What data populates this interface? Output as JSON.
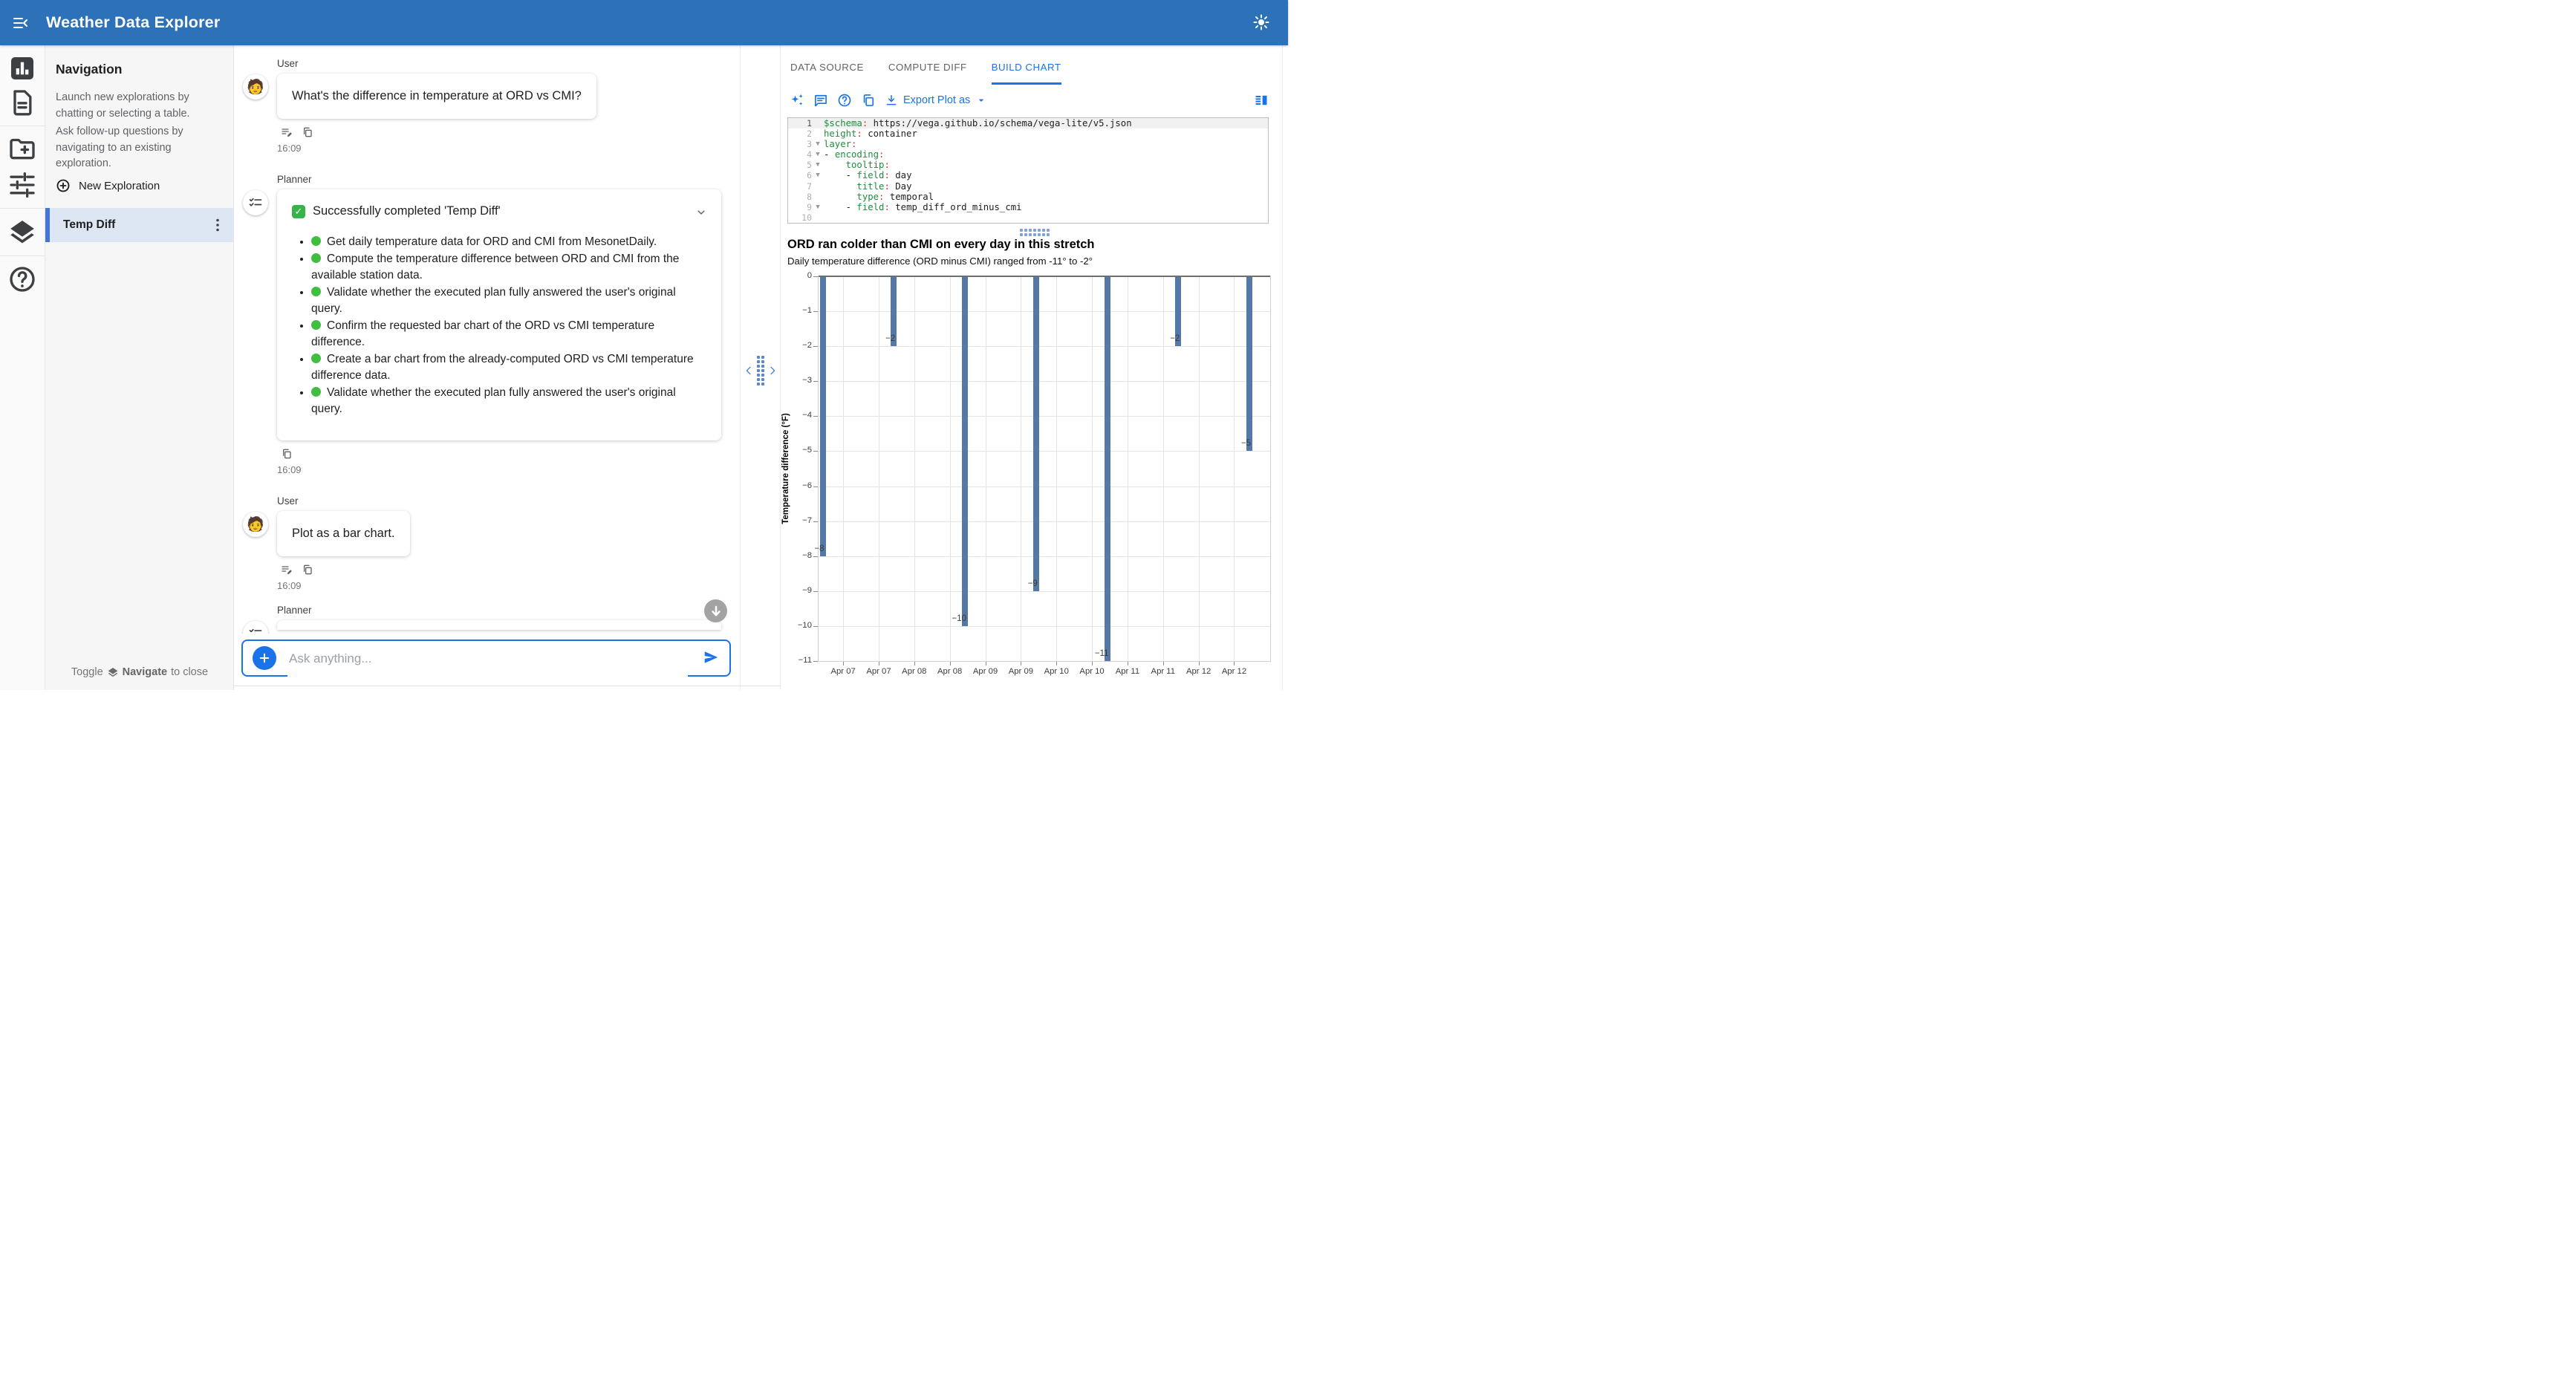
{
  "app": {
    "title": "Weather Data Explorer"
  },
  "colors": {
    "header": "#2d71b8",
    "accent": "#1a73e8",
    "bar": "#5579a6",
    "selected_row_bg": "#dde6f3",
    "selected_row_accent": "#4377d6"
  },
  "icon_rail": {
    "items": [
      "analytics-icon",
      "document-icon",
      "new-folder-icon",
      "tune-icon",
      "layers-icon",
      "help-icon"
    ]
  },
  "navigation": {
    "title": "Navigation",
    "description": [
      "Launch new explorations by chatting or selecting a table.",
      "Ask follow-up questions by navigating to an existing exploration."
    ],
    "new_exploration": {
      "icon": "circle-plus-icon",
      "label": "New Exploration"
    },
    "explorations": [
      {
        "label": "Temp Diff",
        "selected": true,
        "menu_icon": "kebab-menu-icon"
      }
    ],
    "footer": {
      "prefix": "Toggle",
      "icon": "layers-icon",
      "bold": "Navigate",
      "suffix": "to close"
    }
  },
  "chat": {
    "messages": [
      {
        "type": "user",
        "role_label": "User",
        "avatar": "person-emoji",
        "text": "What's the difference in temperature at ORD vs CMI?",
        "actions": [
          "edit-icon",
          "copy-icon"
        ],
        "time": "16:09"
      },
      {
        "type": "planner",
        "role_label": "Planner",
        "avatar": "checklist-icon",
        "status_title": "Successfully completed 'Temp Diff'",
        "steps": [
          "Get daily temperature data for ORD and CMI from MesonetDaily.",
          "Compute the temperature difference between ORD and CMI from the available station data.",
          "Validate whether the executed plan fully answered the user's original query.",
          "Confirm the requested bar chart of the ORD vs CMI temperature difference.",
          "Create a bar chart from the already-computed ORD vs CMI temperature difference data.",
          "Validate whether the executed plan fully answered the user's original query."
        ],
        "actions": [
          "copy-icon"
        ],
        "time": "16:09"
      },
      {
        "type": "user",
        "role_label": "User",
        "avatar": "person-emoji",
        "text": "Plot as a bar chart.",
        "actions": [
          "edit-icon",
          "copy-icon"
        ],
        "time": "16:09"
      },
      {
        "type": "planner-partial",
        "role_label": "Planner",
        "avatar": "checklist-icon"
      }
    ],
    "input": {
      "placeholder": "Ask anything...",
      "attach_icon": "plus-icon",
      "send_icon": "send-icon"
    },
    "scroll_to_bottom_icon": "arrow-down-icon"
  },
  "workspace": {
    "tabs": [
      {
        "label": "DATA SOURCE",
        "active": false
      },
      {
        "label": "COMPUTE DIFF",
        "active": false
      },
      {
        "label": "BUILD CHART",
        "active": true
      }
    ],
    "toolbar": {
      "icons": [
        "auto-awesome-icon",
        "comment-icon",
        "help-icon",
        "copy-icon"
      ],
      "export": {
        "icon": "download-icon",
        "label": "Export Plot as",
        "caret": "caret-down-icon"
      },
      "right_icon": "vertical-split-icon"
    },
    "editor": {
      "lines": [
        {
          "n": "1",
          "active": true,
          "fold": false,
          "tokens": [
            [
              "k",
              "$schema"
            ],
            [
              "p",
              ":"
            ],
            [
              "v",
              " https://vega.github.io/schema/vega-lite/v5.json"
            ]
          ]
        },
        {
          "n": "2",
          "fold": false,
          "tokens": [
            [
              "k",
              "height"
            ],
            [
              "p",
              ":"
            ],
            [
              "v",
              " container"
            ]
          ]
        },
        {
          "n": "3",
          "fold": true,
          "tokens": [
            [
              "k",
              "layer"
            ],
            [
              "p",
              ":"
            ]
          ]
        },
        {
          "n": "4",
          "fold": true,
          "tokens": [
            [
              "v",
              "- "
            ],
            [
              "k",
              "encoding"
            ],
            [
              "p",
              ":"
            ]
          ]
        },
        {
          "n": "5",
          "fold": true,
          "tokens": [
            [
              "v",
              "    "
            ],
            [
              "k",
              "tooltip"
            ],
            [
              "p",
              ":"
            ]
          ]
        },
        {
          "n": "6",
          "fold": true,
          "tokens": [
            [
              "v",
              "    - "
            ],
            [
              "k",
              "field"
            ],
            [
              "p",
              ":"
            ],
            [
              "v",
              " day"
            ]
          ]
        },
        {
          "n": "7",
          "fold": false,
          "tokens": [
            [
              "v",
              "      "
            ],
            [
              "k",
              "title"
            ],
            [
              "p",
              ":"
            ],
            [
              "v",
              " Day"
            ]
          ]
        },
        {
          "n": "8",
          "fold": false,
          "tokens": [
            [
              "v",
              "      "
            ],
            [
              "k",
              "type"
            ],
            [
              "p",
              ":"
            ],
            [
              "v",
              " temporal"
            ]
          ]
        },
        {
          "n": "9",
          "fold": true,
          "tokens": [
            [
              "v",
              "    - "
            ],
            [
              "k",
              "field"
            ],
            [
              "p",
              ":"
            ],
            [
              "v",
              " temp_diff_ord_minus_cmi"
            ]
          ]
        },
        {
          "n": "10",
          "fold": false,
          "tokens": []
        }
      ]
    }
  },
  "chart_data": {
    "type": "bar",
    "title": "ORD ran colder than CMI on every day in this stretch",
    "subtitle": "Daily temperature difference (ORD minus CMI) ranged from -11° to -2°",
    "ylabel": "Temperature difference (°F)",
    "values": [
      -8,
      -2,
      -10,
      -9,
      -11,
      -2,
      -5
    ],
    "value_labels": [
      "−8",
      "−2",
      "−10",
      "−9",
      "−11",
      "−2",
      "−5"
    ],
    "x_tick_labels": [
      "Apr 07",
      "Apr 07",
      "Apr 08",
      "Apr 08",
      "Apr 09",
      "Apr 09",
      "Apr 10",
      "Apr 10",
      "Apr 11",
      "Apr 11",
      "Apr 12",
      "Apr 12"
    ],
    "y_tick_labels": [
      "0",
      "−1",
      "−2",
      "−3",
      "−4",
      "−5",
      "−6",
      "−7",
      "−8",
      "−9",
      "−10",
      "−11"
    ],
    "ylim": [
      0,
      -11
    ],
    "grid": true,
    "legend": "none",
    "bar_color": "#5579a6",
    "layout": {
      "bar_offset_frac": 0.0091,
      "bar_step_frac": 0.1575,
      "tick_offset_frac": 0.0545,
      "tick_step_frac": 0.0787
    }
  }
}
